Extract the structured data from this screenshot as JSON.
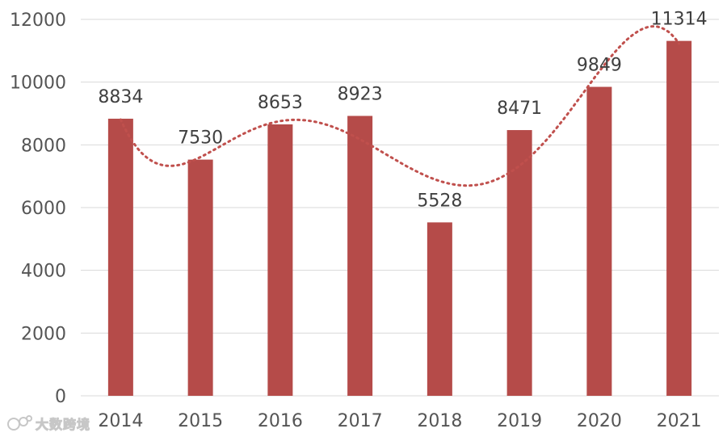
{
  "colors": {
    "bar": "#b54b49",
    "trend": "#c0504d",
    "grid": "#d9d9d9"
  },
  "chart_data": {
    "type": "bar",
    "title": "",
    "xlabel": "",
    "ylabel": "",
    "categories": [
      "2014",
      "2015",
      "2016",
      "2017",
      "2018",
      "2019",
      "2020",
      "2021"
    ],
    "values": [
      8834,
      7530,
      8653,
      8923,
      5528,
      8471,
      9849,
      11314
    ],
    "ylim": [
      0,
      12000
    ],
    "yticks": [
      "0",
      "2000",
      "4000",
      "6000",
      "8000",
      "10000",
      "12000"
    ],
    "data_labels": [
      "8834",
      "7530",
      "8653",
      "8923",
      "5528",
      "8471",
      "9849",
      "11314"
    ],
    "grid": true,
    "trendline": "polynomial, dotted",
    "legend": "none"
  },
  "watermark": {
    "text": "大数跨境",
    "icon": "logo-icon"
  }
}
